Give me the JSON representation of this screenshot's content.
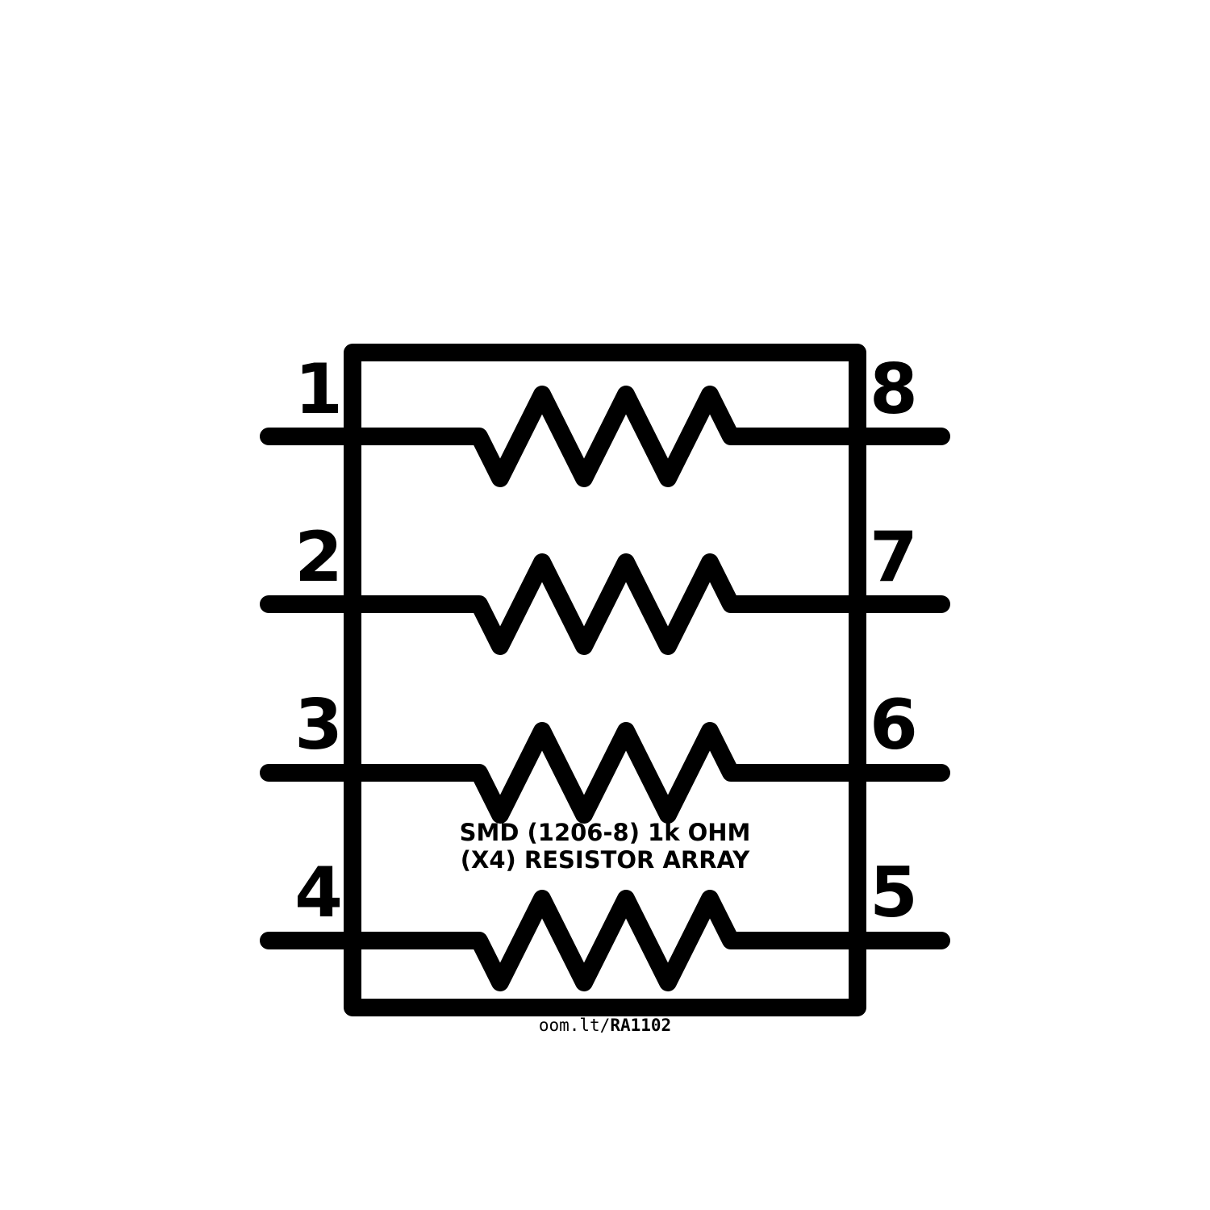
{
  "component": {
    "description_line1": "SMD (1206-8) 1k OHM",
    "description_line2": "(X4) RESISTOR ARRAY",
    "link_prefix": "oom.lt/",
    "link_code": "RA1102"
  },
  "pins": {
    "left": [
      "1",
      "2",
      "3",
      "4"
    ],
    "right": [
      "8",
      "7",
      "6",
      "5"
    ]
  },
  "colors": {
    "stroke": "#000000",
    "background": "#ffffff"
  }
}
